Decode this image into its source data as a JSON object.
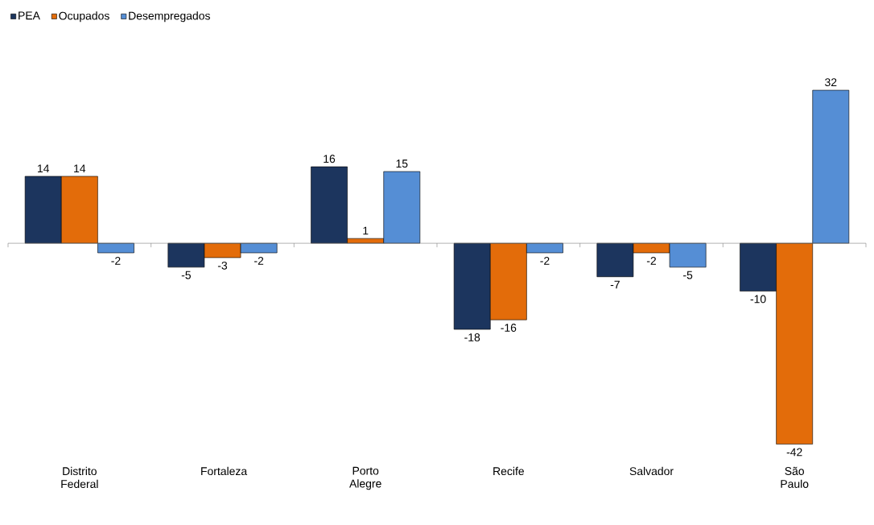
{
  "chart_data": {
    "type": "bar",
    "categories": [
      "Distrito Federal",
      "Fortaleza",
      "Porto Alegre",
      "Recife",
      "Salvador",
      "São Paulo"
    ],
    "series": [
      {
        "name": "PEA",
        "color": "#1c355e",
        "values": [
          14,
          -5,
          16,
          -18,
          -7,
          -10
        ]
      },
      {
        "name": "Ocupados",
        "color": "#e36c0a",
        "values": [
          14,
          -3,
          1,
          -16,
          -2,
          -42
        ]
      },
      {
        "name": "Desempregados",
        "color": "#558ed5",
        "values": [
          -2,
          -2,
          15,
          -2,
          -5,
          32
        ]
      }
    ],
    "data_labels": true,
    "legend": "top left",
    "grid": false
  }
}
